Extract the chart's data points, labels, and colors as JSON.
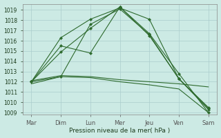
{
  "title": "Pression niveau de la mer( hPa )",
  "background_color": "#cceae4",
  "grid_color": "#aacccc",
  "line_color": "#2d6a2d",
  "x_labels": [
    "Mar",
    "Dim",
    "Lun",
    "Mer",
    "Jeu",
    "Ven",
    "Sam"
  ],
  "ylim": [
    1008.8,
    1019.6
  ],
  "yticks": [
    1009,
    1010,
    1011,
    1012,
    1013,
    1014,
    1015,
    1016,
    1017,
    1018,
    1019
  ],
  "series": [
    {
      "y": [
        1012.0,
        1015.5,
        1014.8,
        1019.3,
        1016.5,
        1012.3,
        1009.5
      ],
      "marker": "D",
      "markersize": 2.2,
      "linewidth": 0.8
    },
    {
      "y": [
        1012.0,
        1016.3,
        1018.1,
        1019.2,
        1018.1,
        1012.3,
        1009.3
      ],
      "marker": "D",
      "markersize": 2.2,
      "linewidth": 0.8
    },
    {
      "y": [
        1012.0,
        1014.9,
        1017.2,
        1019.3,
        1016.7,
        1012.8,
        1009.0
      ],
      "marker": "D",
      "markersize": 2.2,
      "linewidth": 0.8
    },
    {
      "y": [
        1012.0,
        1012.5,
        1017.6,
        1019.1,
        1016.6,
        1012.3,
        1009.4
      ],
      "marker": "D",
      "markersize": 2.2,
      "linewidth": 0.8
    },
    {
      "y": [
        1012.1,
        1012.6,
        1012.5,
        1012.2,
        1012.0,
        1011.8,
        1011.5
      ],
      "marker": null,
      "markersize": 0,
      "linewidth": 0.8
    },
    {
      "y": [
        1011.8,
        1012.5,
        1012.4,
        1012.0,
        1011.7,
        1011.3,
        1009.0
      ],
      "marker": null,
      "markersize": 0,
      "linewidth": 0.8
    }
  ],
  "x_positions": [
    0,
    1,
    2,
    3,
    4,
    5,
    6
  ],
  "figsize": [
    3.2,
    2.0
  ],
  "dpi": 100,
  "xlabel_fontsize": 6.5,
  "ytick_fontsize": 5.5,
  "xtick_fontsize": 6.0
}
